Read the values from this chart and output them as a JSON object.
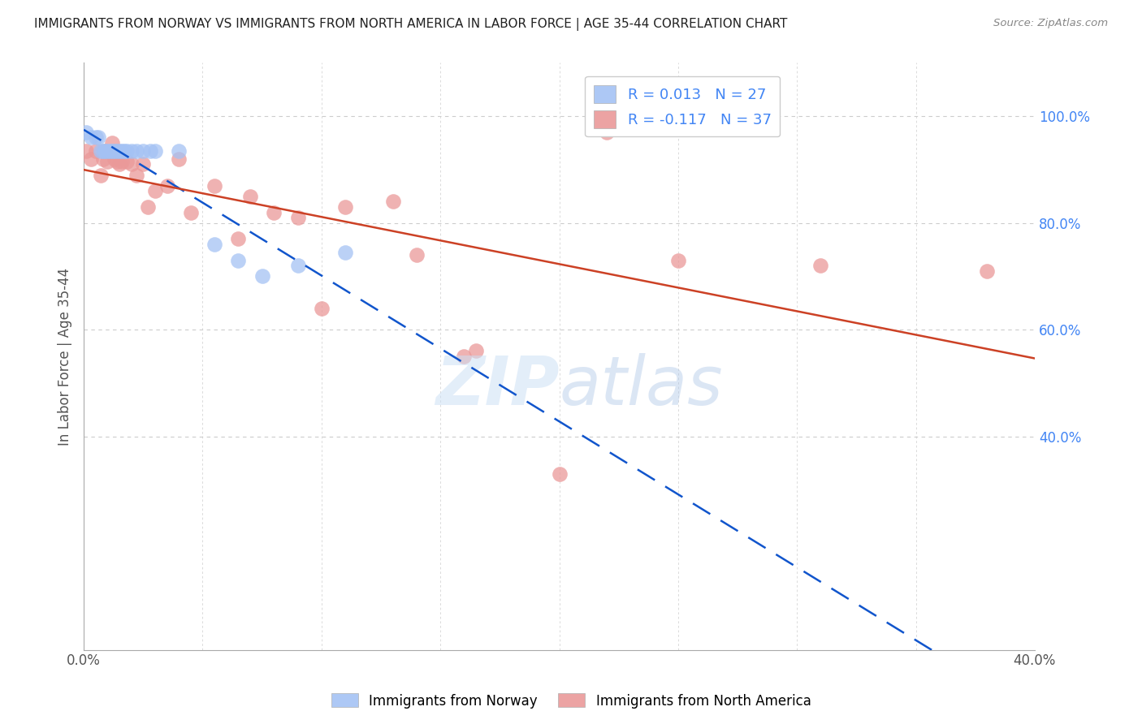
{
  "title": "IMMIGRANTS FROM NORWAY VS IMMIGRANTS FROM NORTH AMERICA IN LABOR FORCE | AGE 35-44 CORRELATION CHART",
  "source": "Source: ZipAtlas.com",
  "ylabel": "In Labor Force | Age 35-44",
  "x_min": 0.0,
  "x_max": 0.4,
  "y_min": 0.0,
  "y_max": 1.1,
  "y_ticks_right": [
    1.0,
    0.8,
    0.6,
    0.4
  ],
  "y_tick_right_labels": [
    "100.0%",
    "80.0%",
    "60.0%",
    "40.0%"
  ],
  "norway_color": "#a4c2f4",
  "north_america_color": "#ea9999",
  "norway_line_color": "#1155cc",
  "north_america_line_color": "#cc4125",
  "norway_x": [
    0.001,
    0.003,
    0.005,
    0.006,
    0.007,
    0.008,
    0.009,
    0.01,
    0.011,
    0.012,
    0.013,
    0.014,
    0.015,
    0.016,
    0.017,
    0.018,
    0.02,
    0.022,
    0.025,
    0.028,
    0.03,
    0.04,
    0.055,
    0.065,
    0.075,
    0.09,
    0.11
  ],
  "norway_y": [
    0.97,
    0.96,
    0.96,
    0.96,
    0.935,
    0.935,
    0.935,
    0.935,
    0.935,
    0.935,
    0.935,
    0.935,
    0.935,
    0.935,
    0.935,
    0.935,
    0.935,
    0.935,
    0.935,
    0.935,
    0.935,
    0.935,
    0.76,
    0.73,
    0.7,
    0.72,
    0.745
  ],
  "north_america_x": [
    0.001,
    0.003,
    0.005,
    0.007,
    0.008,
    0.009,
    0.01,
    0.012,
    0.013,
    0.014,
    0.015,
    0.016,
    0.018,
    0.02,
    0.022,
    0.025,
    0.027,
    0.03,
    0.035,
    0.04,
    0.045,
    0.055,
    0.065,
    0.07,
    0.08,
    0.09,
    0.1,
    0.11,
    0.13,
    0.14,
    0.16,
    0.165,
    0.2,
    0.22,
    0.25,
    0.31,
    0.38
  ],
  "north_america_y": [
    0.935,
    0.92,
    0.935,
    0.89,
    0.92,
    0.935,
    0.915,
    0.95,
    0.92,
    0.915,
    0.91,
    0.915,
    0.915,
    0.91,
    0.89,
    0.91,
    0.83,
    0.86,
    0.87,
    0.92,
    0.82,
    0.87,
    0.77,
    0.85,
    0.82,
    0.81,
    0.64,
    0.83,
    0.84,
    0.74,
    0.55,
    0.56,
    0.33,
    0.97,
    0.73,
    0.72,
    0.71
  ]
}
